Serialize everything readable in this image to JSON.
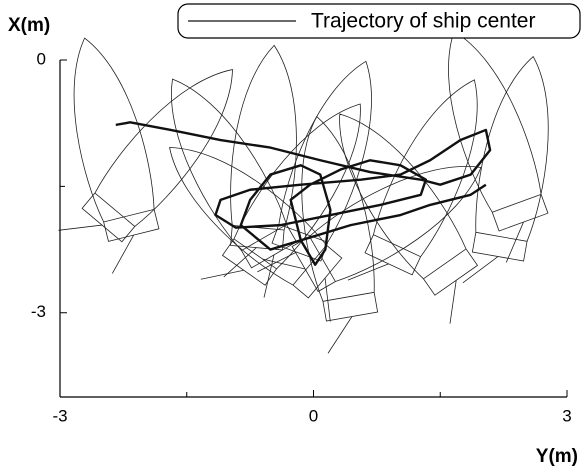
{
  "chart_data": {
    "type": "line",
    "x_label": "Y(m)",
    "y_label": "X(m)",
    "xlim": [
      -3,
      3
    ],
    "xticks": [
      -3,
      0,
      3
    ],
    "xminorticks": [
      -1.5,
      1.5
    ],
    "ylim": [
      -4,
      0
    ],
    "yticks": [
      -3,
      0
    ],
    "yminorticks": [
      -1.5
    ],
    "legend": "top-right",
    "series": [
      {
        "name": "Trajectory of ship center",
        "color": "#111",
        "x": [
          -2.34,
          -2.17,
          -1.69,
          -1.1,
          -0.51,
          0.08,
          0.67,
          1.27,
          1.5,
          1.86,
          2.09,
          2.04,
          1.74,
          1.38,
          1.03,
          0.56,
          -0.15,
          -0.75,
          -1.1,
          -1.16,
          -0.92,
          -0.39,
          0.2,
          0.79,
          1.27,
          1.33,
          1.03,
          0.67,
          0.32,
          -0.04,
          -0.27,
          -0.15,
          0.02,
          0.14,
          0.2,
          0.08,
          -0.15,
          -0.51,
          -0.75,
          -0.86,
          -0.51,
          -0.15,
          0.44,
          1.03,
          1.38,
          1.86,
          2.04
        ],
        "values": [
          -0.77,
          -0.74,
          -0.83,
          -0.95,
          -1.04,
          -1.19,
          -1.33,
          -1.42,
          -1.48,
          -1.36,
          -1.07,
          -0.83,
          -0.95,
          -1.19,
          -1.36,
          -1.42,
          -1.48,
          -1.54,
          -1.66,
          -1.84,
          -1.99,
          -1.96,
          -1.84,
          -1.72,
          -1.6,
          -1.42,
          -1.25,
          -1.19,
          -1.3,
          -1.48,
          -1.66,
          -2.14,
          -2.43,
          -2.25,
          -1.78,
          -1.36,
          -1.25,
          -1.36,
          -1.66,
          -1.96,
          -2.25,
          -2.14,
          -1.96,
          -1.84,
          -1.72,
          -1.6,
          -1.48
        ]
      }
    ]
  }
}
